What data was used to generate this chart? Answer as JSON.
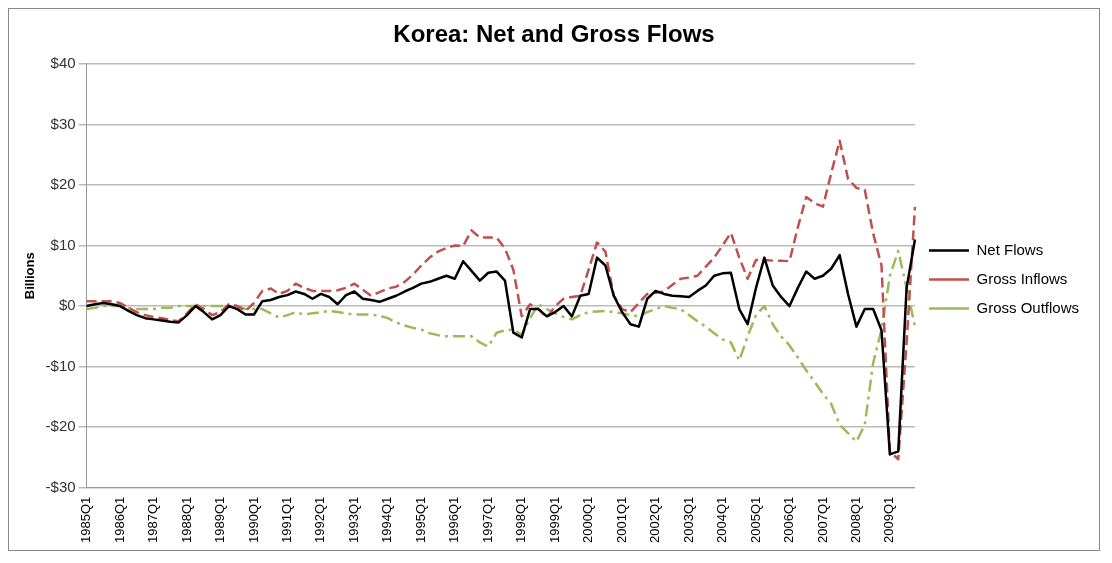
{
  "chart_data": {
    "type": "line",
    "title": "Korea: Net and Gross Flows",
    "ylabel": "Billions",
    "categories": [
      "1985Q1",
      null,
      null,
      null,
      "1986Q1",
      null,
      null,
      null,
      "1987Q1",
      null,
      null,
      null,
      "1988Q1",
      null,
      null,
      null,
      "1989Q1",
      null,
      null,
      null,
      "1990Q1",
      null,
      null,
      null,
      "1991Q1",
      null,
      null,
      null,
      "1992Q1",
      null,
      null,
      null,
      "1993Q1",
      null,
      null,
      null,
      "1994Q1",
      null,
      null,
      null,
      "1995Q1",
      null,
      null,
      null,
      "1996Q1",
      null,
      null,
      null,
      "1997Q1",
      null,
      null,
      null,
      "1998Q1",
      null,
      null,
      null,
      "1999Q1",
      null,
      null,
      null,
      "2000Q1",
      null,
      null,
      null,
      "2001Q1",
      null,
      null,
      null,
      "2002Q1",
      null,
      null,
      null,
      "2003Q1",
      null,
      null,
      null,
      "2004Q1",
      null,
      null,
      null,
      "2005Q1",
      null,
      null,
      null,
      "2006Q1",
      null,
      null,
      null,
      "2007Q1",
      null,
      null,
      null,
      "2008Q1",
      null,
      null,
      null,
      "2009Q1",
      null,
      null,
      null
    ],
    "series": [
      {
        "name": "Net Flows",
        "color": "#000000",
        "line_style": "solid",
        "values": [
          0,
          0.3,
          0.5,
          0.3,
          0,
          -0.8,
          -1.5,
          -2,
          -2.2,
          -2.4,
          -2.6,
          -2.7,
          -1.5,
          0,
          -1,
          -2.2,
          -1.5,
          0,
          -0.5,
          -1.4,
          -1.4,
          0.8,
          1,
          1.5,
          1.8,
          2.4,
          2,
          1.2,
          2,
          1.5,
          0.3,
          1.8,
          2.4,
          1.2,
          1,
          0.7,
          1.2,
          1.7,
          2.4,
          3,
          3.7,
          4,
          4.5,
          5,
          4.5,
          7.4,
          5.8,
          4.2,
          5.5,
          5.7,
          4.2,
          -4.4,
          -5.2,
          -0.5,
          -0.5,
          -1.7,
          -1,
          0,
          -1.7,
          1.7,
          2,
          8,
          6.7,
          1.7,
          -1,
          -3,
          -3.4,
          1.2,
          2.5,
          2,
          1.7,
          1.6,
          1.5,
          2.5,
          3.4,
          5,
          5.4,
          5.5,
          -0.5,
          -3,
          3,
          8,
          3.4,
          1.5,
          0,
          3,
          5.7,
          4.5,
          5,
          6.2,
          8.4,
          2,
          -3.4,
          -0.5,
          -0.5,
          -4,
          -24.5,
          -24,
          3,
          11
        ]
      },
      {
        "name": "Gross Inflows",
        "color": "#c0504d",
        "line_style": "dashed",
        "values": [
          0.8,
          0.8,
          0.8,
          0.8,
          0.5,
          -0.3,
          -1,
          -1.5,
          -1.8,
          -2,
          -2.3,
          -2.5,
          -1.2,
          0.3,
          -0.5,
          -1.5,
          -1,
          0.3,
          0,
          -0.8,
          0.5,
          2.5,
          2.9,
          2,
          2.5,
          3.7,
          3,
          2.5,
          2.5,
          2.5,
          2.6,
          3,
          3.7,
          2.7,
          1.7,
          2.3,
          2.9,
          3.2,
          4,
          5.2,
          6.7,
          8,
          9,
          9.6,
          10,
          9.9,
          12.5,
          11.3,
          11.3,
          11.3,
          9.5,
          6,
          -1.7,
          0.3,
          -0.5,
          -1.9,
          0,
          1.2,
          1.5,
          1.7,
          6,
          10.5,
          9,
          1.7,
          -0.5,
          -1,
          0.5,
          2,
          2.2,
          2.4,
          3.5,
          4.5,
          4.7,
          5,
          6.5,
          8,
          10,
          12.1,
          8,
          4.5,
          7.6,
          7.6,
          7.5,
          7.5,
          7.4,
          13,
          18,
          17,
          16.4,
          22,
          27.3,
          21,
          19.5,
          19.2,
          12,
          6.7,
          -24,
          -25.3,
          -6,
          16.4
        ]
      },
      {
        "name": "Gross Outflows",
        "color": "#9bbb59",
        "line_style": "dashdot",
        "values": [
          -0.5,
          -0.3,
          0,
          0,
          0,
          -0.3,
          -0.5,
          -0.5,
          -0.5,
          -0.3,
          -0.3,
          0,
          0,
          0,
          0,
          0,
          0,
          0,
          0,
          -0.5,
          -0.5,
          -0.5,
          -1.2,
          -1.9,
          -1.5,
          -1,
          -1.4,
          -1.2,
          -1,
          -0.8,
          -1,
          -1.2,
          -1.4,
          -1.4,
          -1.4,
          -1.6,
          -2,
          -2.7,
          -3.2,
          -3.6,
          -3.9,
          -4.5,
          -4.8,
          -5,
          -5,
          -5,
          -5,
          -6,
          -6.7,
          -4.4,
          -4,
          -3.9,
          -4.7,
          -2,
          0.3,
          -0.5,
          -1.2,
          -1.8,
          -2.2,
          -1.5,
          -1,
          -0.9,
          -0.8,
          -1,
          -1.2,
          -1.5,
          -1.7,
          -1,
          -0.5,
          0,
          -0.3,
          -0.5,
          -1.5,
          -2.5,
          -3.4,
          -4.5,
          -5.5,
          -6,
          -9,
          -5,
          -1.5,
          0,
          -3,
          -5,
          -6.5,
          -8.5,
          -10.6,
          -12.5,
          -14.5,
          -16.2,
          -19.6,
          -21,
          -22.4,
          -19.6,
          -9.4,
          -3.9,
          5,
          9.1,
          3,
          -3.4
        ]
      }
    ],
    "ylim": [
      -30,
      40
    ],
    "yticks": [
      {
        "value": -30,
        "label": "-$30"
      },
      {
        "value": -20,
        "label": "-$20"
      },
      {
        "value": -10,
        "label": "-$10"
      },
      {
        "value": 0,
        "label": "$0"
      },
      {
        "value": 10,
        "label": "$10"
      },
      {
        "value": 20,
        "label": "$20"
      },
      {
        "value": 30,
        "label": "$30"
      },
      {
        "value": 40,
        "label": "$40"
      }
    ],
    "grid": "y",
    "legend": "right",
    "marker": "none"
  }
}
